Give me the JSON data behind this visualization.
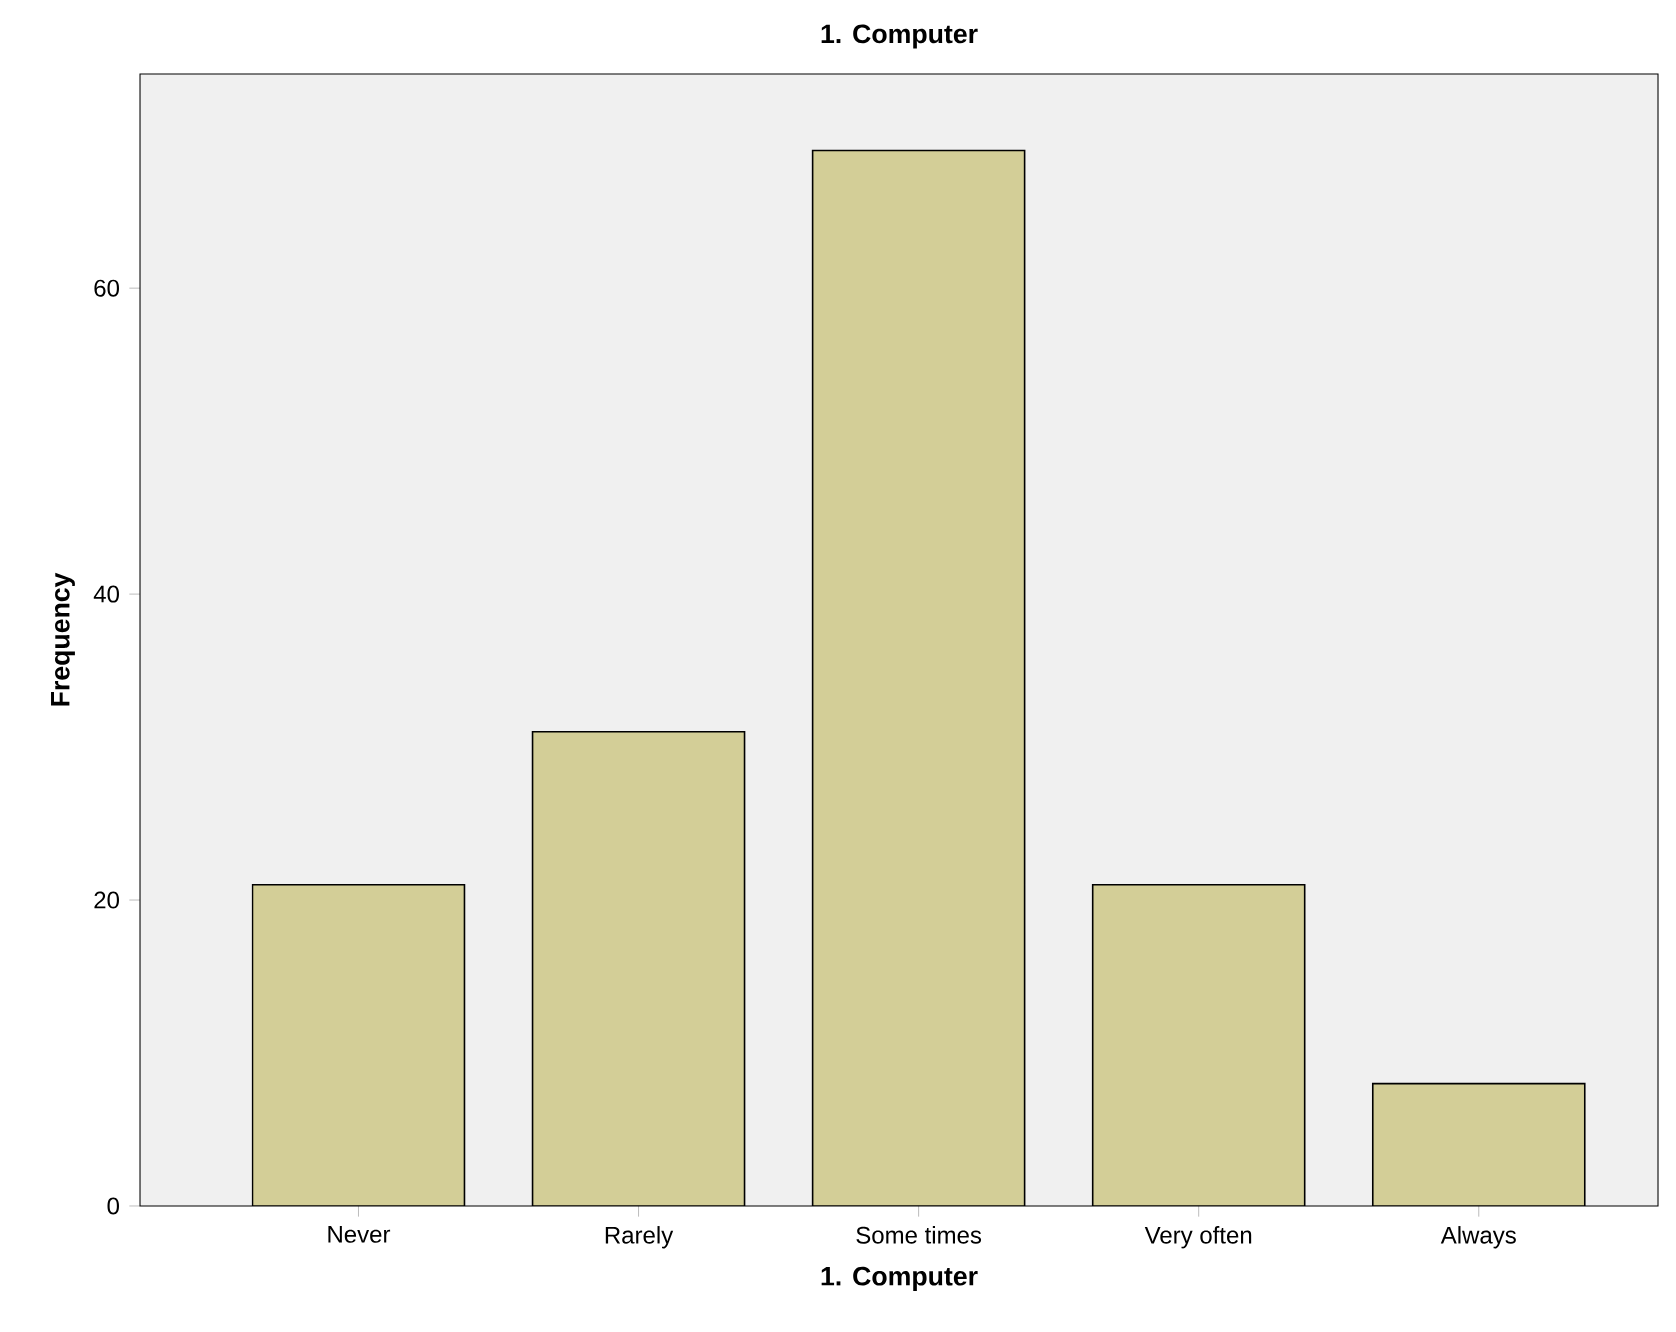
{
  "chart_data": {
    "type": "bar",
    "title": "1. Computer",
    "xlabel": "1. Computer",
    "ylabel": "Frequency",
    "categories": [
      "Never",
      "Rarely",
      "Some times",
      "Very often",
      "Always"
    ],
    "values": [
      21,
      31,
      69,
      21,
      8
    ],
    "color": "#d3ce97",
    "ylim": [
      0,
      74
    ],
    "yticks": [
      0,
      20,
      40,
      60
    ]
  }
}
